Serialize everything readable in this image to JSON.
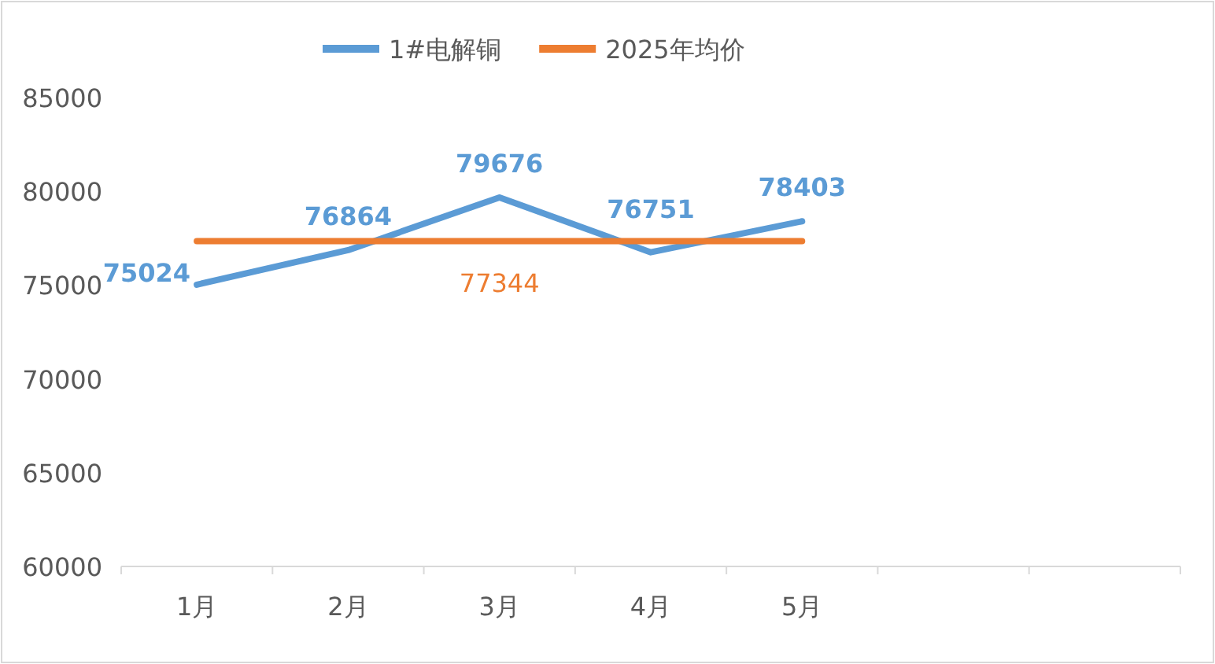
{
  "chart_data": {
    "type": "line",
    "categories": [
      "1月",
      "2月",
      "3月",
      "4月",
      "5月",
      null,
      null
    ],
    "series": [
      {
        "name": "1#电解铜",
        "color": "#5b9bd5",
        "values": [
          75024,
          76864,
          79676,
          76751,
          78403,
          null,
          null
        ],
        "value_labels": [
          "75024",
          "76864",
          "79676",
          "76751",
          "78403",
          null,
          null
        ]
      },
      {
        "name": "2025年均价",
        "color": "#ed7d31",
        "values": [
          77344,
          77344,
          77344,
          77344,
          77344,
          null,
          null
        ],
        "value_labels": [
          null,
          null,
          "77344",
          null,
          null,
          null,
          null
        ]
      }
    ],
    "ylim": [
      60000,
      85000
    ],
    "yticks": [
      60000,
      65000,
      70000,
      75000,
      80000,
      85000
    ],
    "grid": false,
    "legend": "top",
    "marker": "none",
    "line_style": "solid"
  }
}
